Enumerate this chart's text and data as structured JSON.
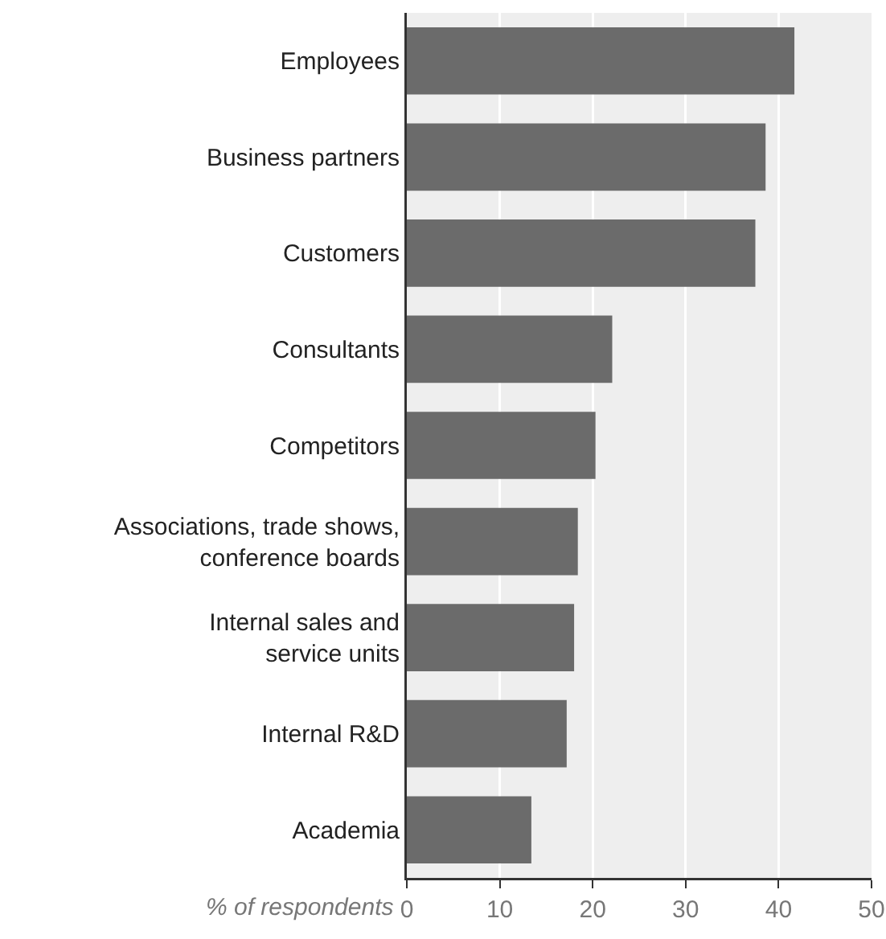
{
  "chart_data": {
    "type": "bar",
    "orientation": "horizontal",
    "xlabel": "% of respondents",
    "categories": [
      "Employees",
      "Business partners",
      "Customers",
      "Consultants",
      "Competitors",
      "Associations, trade shows,\nconference boards",
      "Internal sales and\nservice units",
      "Internal R&D",
      "Academia"
    ],
    "values": [
      41.7,
      38.6,
      37.5,
      22.1,
      20.3,
      18.4,
      18.0,
      17.2,
      13.4
    ],
    "color": "#6b6b6b",
    "xlim": [
      0,
      50
    ],
    "xticks": [
      0,
      10,
      20,
      30,
      40,
      50
    ],
    "grid": "x"
  }
}
